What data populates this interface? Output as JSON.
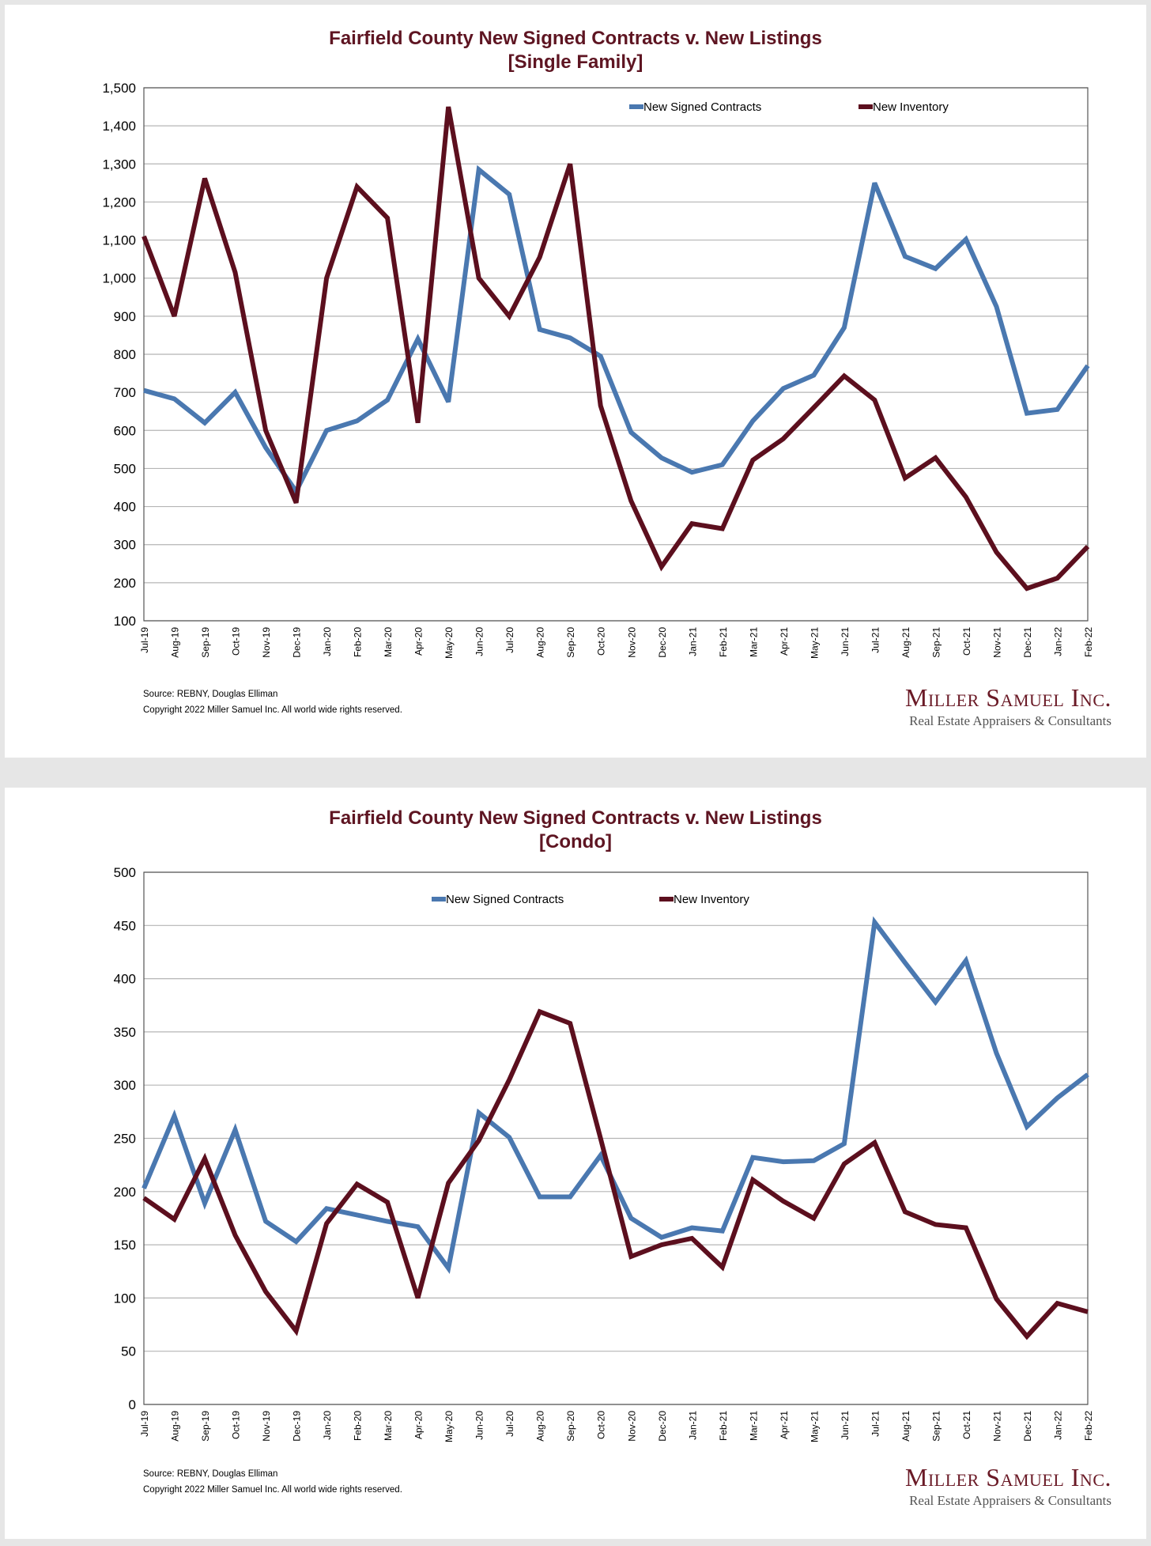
{
  "chart_data": [
    {
      "type": "line",
      "title": "Fairfield County New Signed Contracts v. New Listings",
      "subtitle": "[Single Family]",
      "xlabel": "",
      "ylabel": "",
      "ylim": [
        100,
        1500
      ],
      "yticks": [
        100,
        200,
        300,
        400,
        500,
        600,
        700,
        800,
        900,
        1000,
        1100,
        1200,
        1300,
        1400,
        1500
      ],
      "ytick_labels": [
        "100",
        "200",
        "300",
        "400",
        "500",
        "600",
        "700",
        "800",
        "900",
        "1,000",
        "1,100",
        "1,200",
        "1,300",
        "1,400",
        "1,500"
      ],
      "grid": true,
      "legend": "top-right",
      "categories": [
        "Jul-19",
        "Aug-19",
        "Sep-19",
        "Oct-19",
        "Nov-19",
        "Dec-19",
        "Jan-20",
        "Feb-20",
        "Mar-20",
        "Apr-20",
        "May-20",
        "Jun-20",
        "Jul-20",
        "Aug-20",
        "Sep-20",
        "Oct-20",
        "Nov-20",
        "Dec-20",
        "Jan-21",
        "Feb-21",
        "Mar-21",
        "Apr-21",
        "May-21",
        "Jun-21",
        "Jul-21",
        "Aug-21",
        "Sep-21",
        "Oct-21",
        "Nov-21",
        "Dec-21",
        "Jan-22",
        "Feb-22"
      ],
      "series": [
        {
          "name": "New Signed Contracts",
          "color": "#4a78b0",
          "values": [
            705,
            683,
            620,
            700,
            555,
            440,
            600,
            625,
            680,
            840,
            675,
            1285,
            1220,
            865,
            843,
            795,
            595,
            528,
            490,
            510,
            625,
            710,
            745,
            870,
            1250,
            1057,
            1025,
            1102,
            925,
            645,
            655,
            770
          ]
        },
        {
          "name": "New Inventory",
          "color": "#5c0f1e",
          "values": [
            1110,
            900,
            1262,
            1015,
            600,
            410,
            1000,
            1240,
            1158,
            620,
            1450,
            1000,
            900,
            1055,
            1300,
            665,
            415,
            242,
            355,
            342,
            522,
            578,
            660,
            743,
            680,
            475,
            528,
            425,
            280,
            185,
            212,
            295
          ]
        }
      ]
    },
    {
      "type": "line",
      "title": "Fairfield County New Signed Contracts v. New Listings",
      "subtitle": "[Condo]",
      "xlabel": "",
      "ylabel": "",
      "ylim": [
        0,
        500
      ],
      "yticks": [
        0,
        50,
        100,
        150,
        200,
        250,
        300,
        350,
        400,
        450,
        500
      ],
      "ytick_labels": [
        "0",
        "50",
        "100",
        "150",
        "200",
        "250",
        "300",
        "350",
        "400",
        "450",
        "500"
      ],
      "grid": true,
      "legend": "top-center",
      "categories": [
        "Jul-19",
        "Aug-19",
        "Sep-19",
        "Oct-19",
        "Nov-19",
        "Dec-19",
        "Jan-20",
        "Feb-20",
        "Mar-20",
        "Apr-20",
        "May-20",
        "Jun-20",
        "Jul-20",
        "Aug-20",
        "Sep-20",
        "Oct-20",
        "Nov-20",
        "Dec-20",
        "Jan-21",
        "Feb-21",
        "Mar-21",
        "Apr-21",
        "May-21",
        "Jun-21",
        "Jul-21",
        "Aug-21",
        "Sep-21",
        "Oct-21",
        "Nov-21",
        "Dec-21",
        "Jan-22",
        "Feb-22"
      ],
      "series": [
        {
          "name": "New Signed Contracts",
          "color": "#4a78b0",
          "values": [
            203,
            271,
            189,
            258,
            172,
            153,
            184,
            178,
            172,
            167,
            128,
            274,
            251,
            195,
            195,
            234,
            175,
            157,
            166,
            163,
            232,
            228,
            229,
            245,
            453,
            415,
            378,
            417,
            330,
            261,
            288,
            310
          ]
        },
        {
          "name": "New Inventory",
          "color": "#5c0f1e",
          "values": [
            194,
            174,
            231,
            159,
            106,
            69,
            170,
            207,
            190,
            100,
            208,
            248,
            305,
            369,
            358,
            250,
            139,
            150,
            156,
            129,
            211,
            191,
            175,
            226,
            246,
            181,
            169,
            166,
            99,
            64,
            95,
            87
          ]
        }
      ]
    }
  ],
  "footer": {
    "source": "Source: REBNY, Douglas Elliman",
    "copyright": "Copyright 2022 Miller Samuel Inc.  All world wide rights reserved.",
    "logo_name": "Miller Samuel Inc.",
    "logo_tagline": "Real Estate Appraisers & Consultants"
  }
}
